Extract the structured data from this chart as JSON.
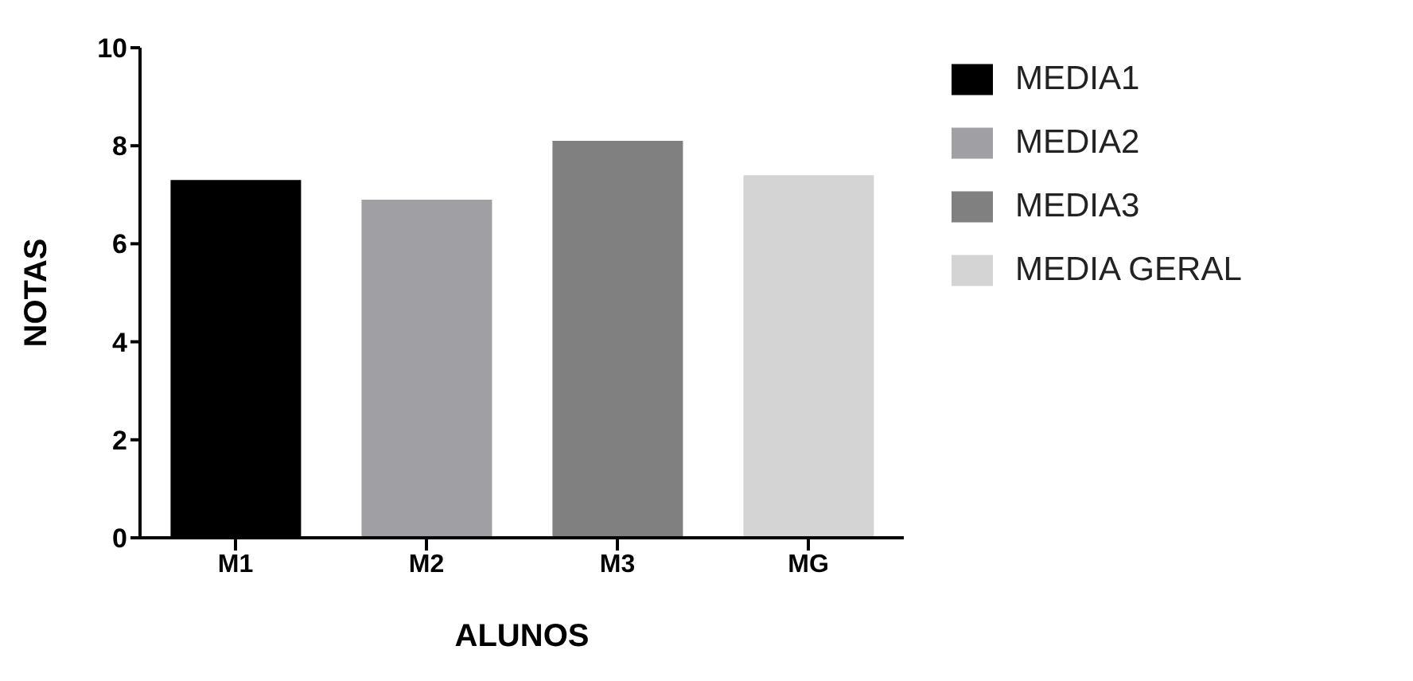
{
  "chart_data": {
    "type": "bar",
    "xlabel": "ALUNOS",
    "ylabel": "NOTAS",
    "categories": [
      "M1",
      "M2",
      "M3",
      "MG"
    ],
    "series": [
      {
        "name": "MEDIA1",
        "color": "#000000",
        "values": [
          7.3,
          null,
          null,
          null
        ]
      },
      {
        "name": "MEDIA2",
        "color": "#a0a0a4",
        "values": [
          null,
          6.9,
          null,
          null
        ]
      },
      {
        "name": "MEDIA3",
        "color": "#808080",
        "values": [
          null,
          null,
          8.1,
          null
        ]
      },
      {
        "name": "MEDIA GERAL",
        "color": "#d4d4d4",
        "values": [
          null,
          null,
          null,
          7.4
        ]
      }
    ],
    "ylim": [
      0,
      10
    ],
    "yticks": [
      0,
      2,
      4,
      6,
      8,
      10
    ],
    "grid": false,
    "legend": "top right"
  }
}
